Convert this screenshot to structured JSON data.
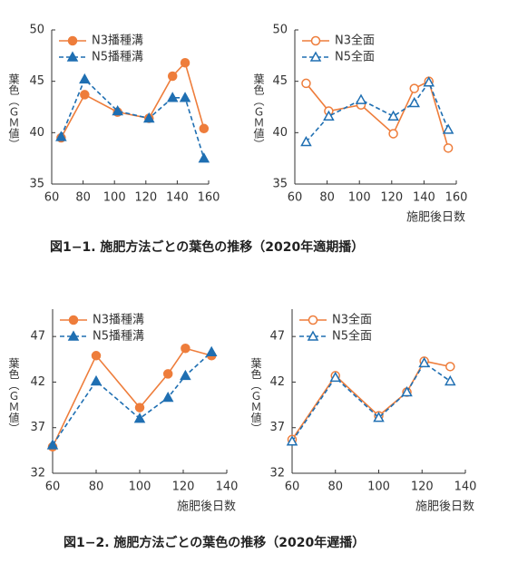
{
  "chart_data": [
    {
      "type": "line",
      "y_label": "葉色（ＧＭ値）",
      "legend": "upper left",
      "x": [
        66,
        81,
        102,
        122,
        137,
        145,
        157
      ],
      "xlim": [
        60,
        160
      ],
      "xticks": [
        60,
        80,
        100,
        120,
        140,
        160
      ],
      "ylim": [
        35,
        50
      ],
      "yticks": [
        35,
        40,
        45,
        50
      ],
      "series": [
        {
          "name": "N3播種溝",
          "color": "#ee7d3b",
          "marker": "circle",
          "filled": true,
          "linestyle": "solid",
          "values": [
            39.5,
            43.7,
            42.0,
            41.4,
            45.5,
            46.8,
            40.4
          ]
        },
        {
          "name": "N5播種溝",
          "color": "#1f6fb2",
          "marker": "triangle",
          "filled": true,
          "linestyle": "dashed",
          "values": [
            39.6,
            45.2,
            42.1,
            41.4,
            43.4,
            43.4,
            37.5
          ]
        }
      ]
    },
    {
      "type": "line",
      "x_label": "施肥後日数",
      "y_label": "葉色（ＧＭ値）",
      "legend": "upper left",
      "x": [
        67,
        81,
        101,
        121,
        134,
        143,
        155
      ],
      "xlim": [
        60,
        160
      ],
      "xticks": [
        60,
        80,
        100,
        120,
        140,
        160
      ],
      "ylim": [
        35,
        50
      ],
      "yticks": [
        35,
        40,
        45,
        50
      ],
      "series": [
        {
          "name": "N3全面",
          "color": "#ee7d3b",
          "marker": "circle",
          "filled": false,
          "linestyle": "solid",
          "values": [
            44.8,
            42.1,
            42.7,
            39.9,
            44.3,
            45.0,
            38.5
          ]
        },
        {
          "name": "N5全面",
          "color": "#1f6fb2",
          "marker": "triangle",
          "filled": false,
          "linestyle": "dashed",
          "values": [
            39.1,
            41.6,
            43.2,
            41.6,
            42.9,
            44.9,
            40.3
          ]
        }
      ]
    },
    {
      "type": "line",
      "x_label": "施肥後日数",
      "y_label": "葉色（ＧＭ値）",
      "legend": "upper left",
      "x": [
        60,
        80,
        100,
        113,
        121,
        133
      ],
      "xlim": [
        60,
        140
      ],
      "xticks": [
        60,
        80,
        100,
        120,
        140
      ],
      "ylim": [
        32,
        50
      ],
      "yticks": [
        32,
        37,
        42,
        47
      ],
      "series": [
        {
          "name": "N3播種溝",
          "color": "#ee7d3b",
          "marker": "circle",
          "filled": true,
          "linestyle": "solid",
          "values": [
            34.9,
            44.9,
            39.2,
            42.9,
            45.7,
            44.9
          ]
        },
        {
          "name": "N5播種溝",
          "color": "#1f6fb2",
          "marker": "triangle",
          "filled": true,
          "linestyle": "dashed",
          "values": [
            35.1,
            42.1,
            38.0,
            40.3,
            42.7,
            45.3
          ]
        }
      ]
    },
    {
      "type": "line",
      "x_label": "施肥後日数",
      "y_label": "葉色（ＧＭ値）",
      "legend": "upper left",
      "x": [
        60,
        80,
        100,
        113,
        121,
        133
      ],
      "xlim": [
        60,
        140
      ],
      "xticks": [
        60,
        80,
        100,
        120,
        140
      ],
      "ylim": [
        32,
        50
      ],
      "yticks": [
        32,
        37,
        42,
        47
      ],
      "series": [
        {
          "name": "N3全面",
          "color": "#ee7d3b",
          "marker": "circle",
          "filled": false,
          "linestyle": "solid",
          "values": [
            35.7,
            42.7,
            38.3,
            40.9,
            44.3,
            43.7
          ]
        },
        {
          "name": "N5全面",
          "color": "#1f6fb2",
          "marker": "triangle",
          "filled": false,
          "linestyle": "dashed",
          "values": [
            35.5,
            42.5,
            38.1,
            40.9,
            44.1,
            42.1
          ]
        }
      ]
    }
  ],
  "captions": [
    "図1−1.  施肥方法ごとの葉色の推移（2020年適期播）",
    "図1−2.  施肥方法ごとの葉色の推移（2020年遅播）"
  ]
}
